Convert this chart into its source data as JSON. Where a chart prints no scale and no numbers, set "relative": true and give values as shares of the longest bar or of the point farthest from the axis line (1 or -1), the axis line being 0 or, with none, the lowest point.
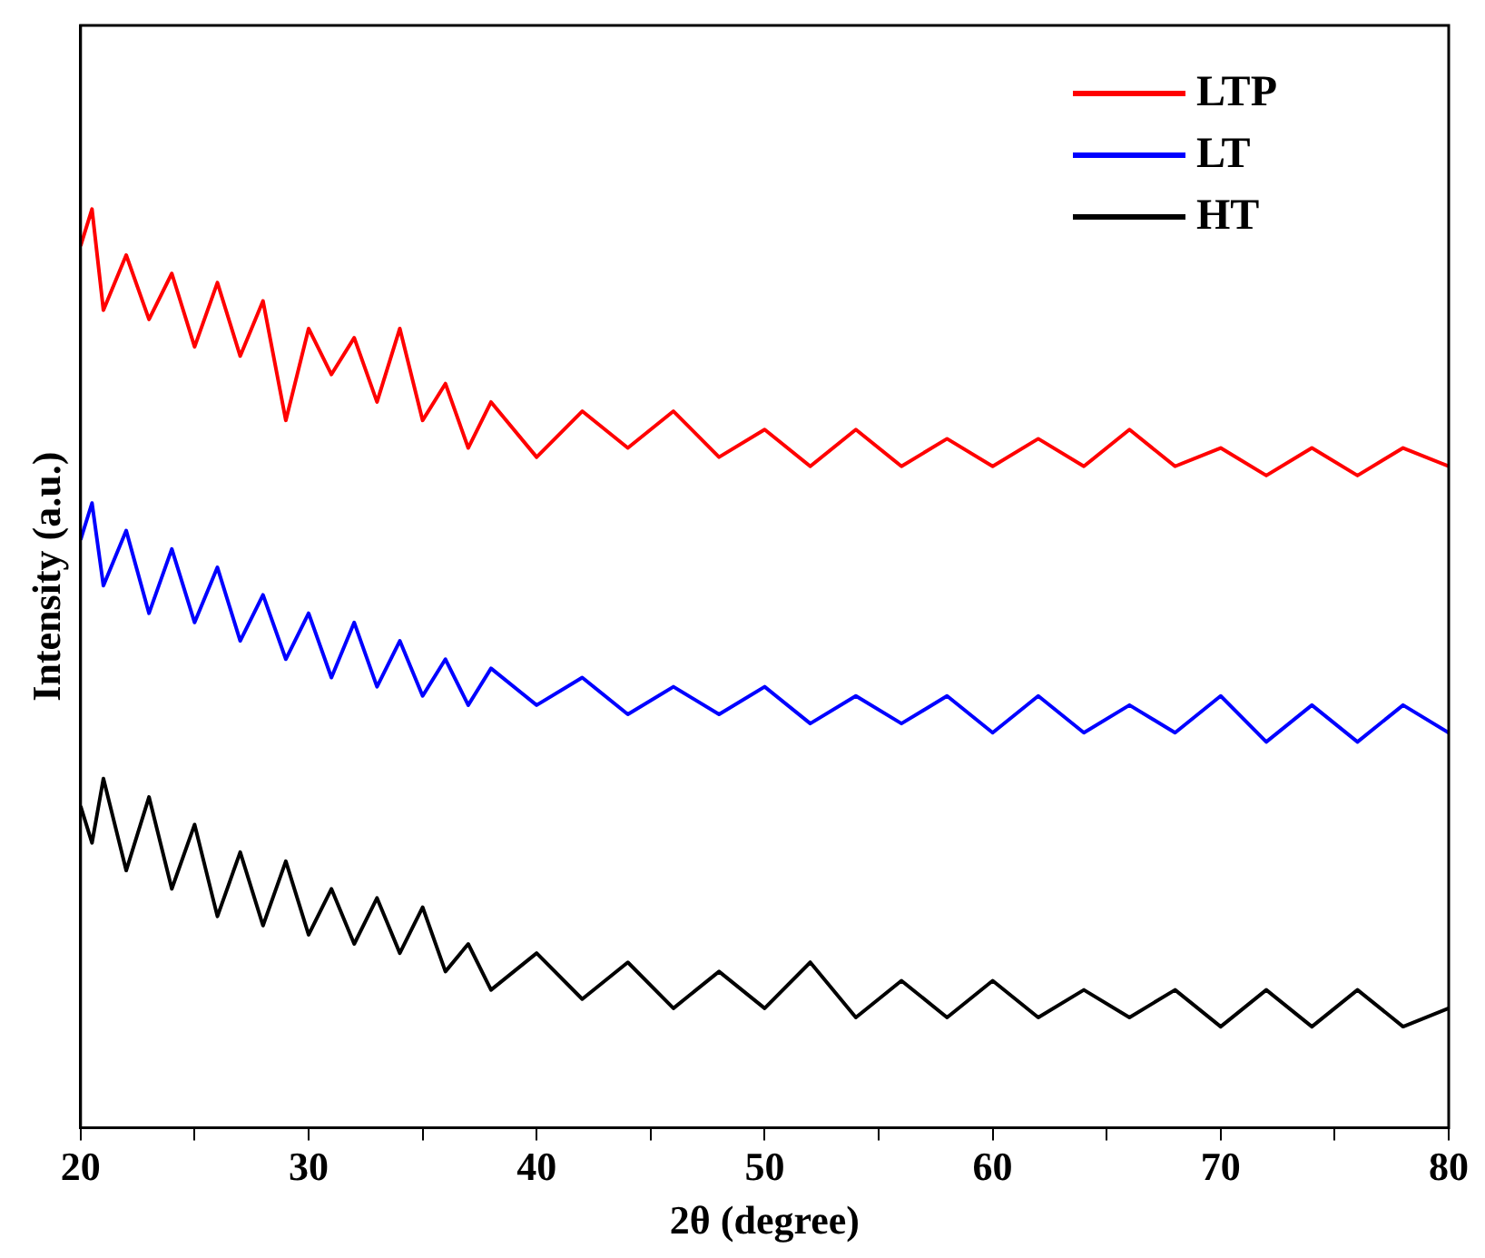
{
  "chart_data": {
    "type": "line",
    "relative": true,
    "xlabel": "2θ (degree)",
    "ylabel": "Intensity (a.u.)",
    "xlim": [
      20,
      80
    ],
    "xticks": [
      20,
      {
        "value": 25,
        "label": null
      },
      30,
      {
        "value": 35,
        "label": null
      },
      40,
      {
        "value": 45,
        "label": null
      },
      50,
      {
        "value": 55,
        "label": null
      },
      60,
      {
        "value": 65,
        "label": null
      },
      70,
      {
        "value": 75,
        "label": null
      },
      80
    ],
    "x": [
      20,
      20.5,
      21,
      22,
      23,
      24,
      25,
      26,
      27,
      28,
      29,
      30,
      31,
      32,
      33,
      34,
      35,
      36,
      37,
      38,
      40,
      42,
      44,
      46,
      48,
      50,
      52,
      54,
      56,
      58,
      60,
      62,
      64,
      66,
      68,
      70,
      72,
      74,
      76,
      78,
      80
    ],
    "legend": "top right",
    "grid": false,
    "marker": "none",
    "line_style": "solid",
    "series": [
      {
        "name": "LTP",
        "color": "#ff0000",
        "values": [
          0.96,
          1,
          0.89,
          0.95,
          0.88,
          0.93,
          0.85,
          0.92,
          0.84,
          0.9,
          0.77,
          0.87,
          0.82,
          0.86,
          0.79,
          0.87,
          0.77,
          0.81,
          0.74,
          0.79,
          0.73,
          0.78,
          0.74,
          0.78,
          0.73,
          0.76,
          0.72,
          0.76,
          0.72,
          0.75,
          0.72,
          0.75,
          0.72,
          0.76,
          0.72,
          0.74,
          0.71,
          0.74,
          0.71,
          0.74,
          0.72
        ]
      },
      {
        "name": "LT",
        "color": "#0000ff",
        "values": [
          0.64,
          0.68,
          0.59,
          0.65,
          0.56,
          0.63,
          0.55,
          0.61,
          0.53,
          0.58,
          0.51,
          0.56,
          0.49,
          0.55,
          0.48,
          0.53,
          0.47,
          0.51,
          0.46,
          0.5,
          0.46,
          0.49,
          0.45,
          0.48,
          0.45,
          0.48,
          0.44,
          0.47,
          0.44,
          0.47,
          0.43,
          0.47,
          0.43,
          0.46,
          0.43,
          0.47,
          0.42,
          0.46,
          0.42,
          0.46,
          0.43
        ]
      },
      {
        "name": "HT",
        "color": "#000000",
        "values": [
          0.35,
          0.31,
          0.38,
          0.28,
          0.36,
          0.26,
          0.33,
          0.23,
          0.3,
          0.22,
          0.29,
          0.21,
          0.26,
          0.2,
          0.25,
          0.19,
          0.24,
          0.17,
          0.2,
          0.15,
          0.19,
          0.14,
          0.18,
          0.13,
          0.17,
          0.13,
          0.18,
          0.12,
          0.16,
          0.12,
          0.16,
          0.12,
          0.15,
          0.12,
          0.15,
          0.11,
          0.15,
          0.11,
          0.15,
          0.11,
          0.13
        ]
      }
    ]
  }
}
